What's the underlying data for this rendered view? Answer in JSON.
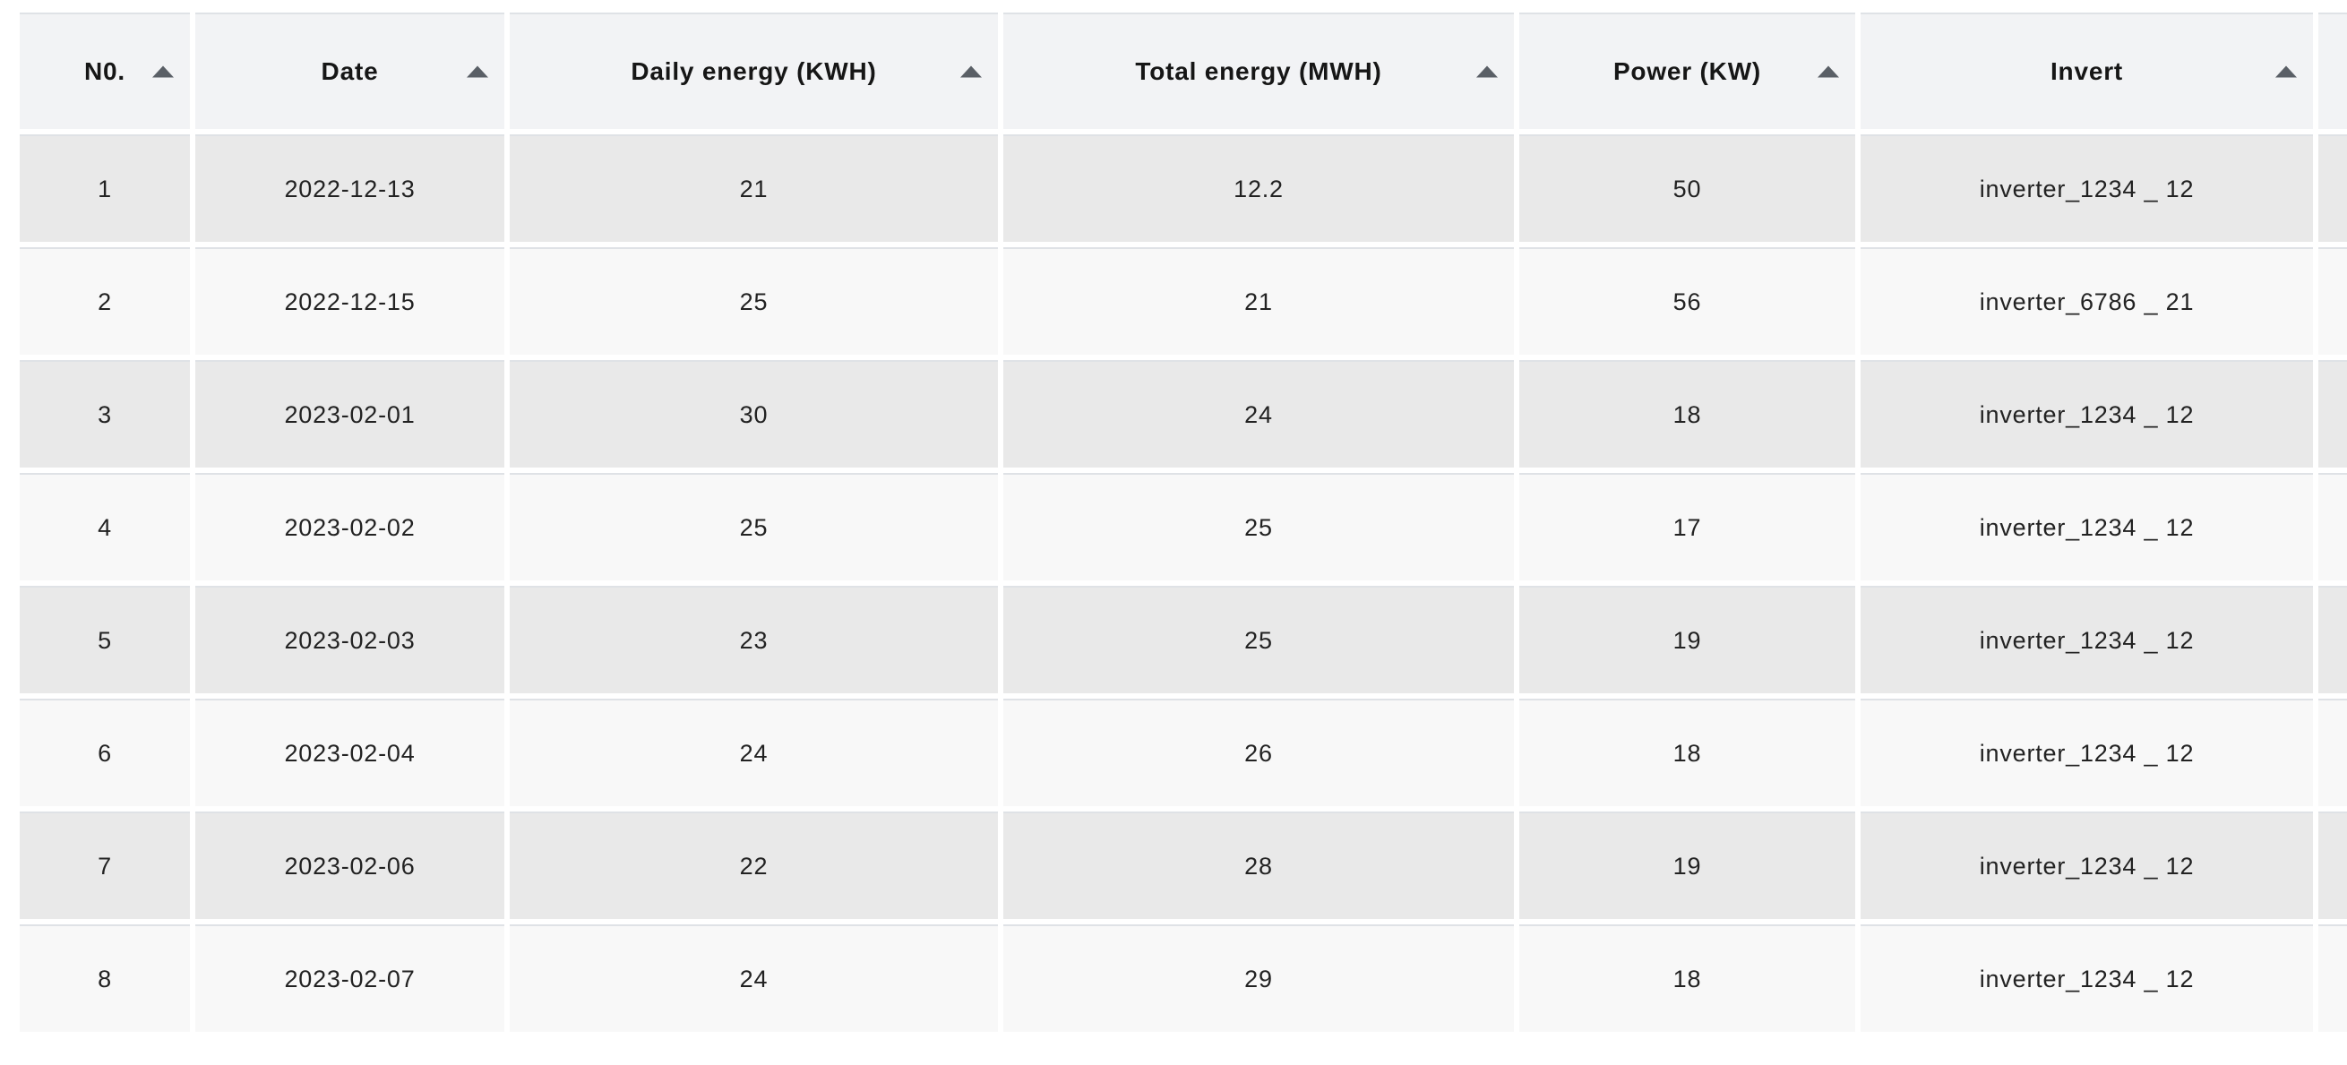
{
  "table": {
    "columns": [
      "N0.",
      "Date",
      "Daily energy (KWH)",
      "Total energy (MWH)",
      "Power (KW)",
      "Invert"
    ],
    "sort_icon": "caret-up-icon",
    "rows": [
      [
        "1",
        "2022-12-13",
        "21",
        "12.2",
        "50",
        "inverter_1234 _ 12"
      ],
      [
        "2",
        "2022-12-15",
        "25",
        "21",
        "56",
        "inverter_6786 _ 21"
      ],
      [
        "3",
        "2023-02-01",
        "30",
        "24",
        "18",
        "inverter_1234 _ 12"
      ],
      [
        "4",
        "2023-02-02",
        "25",
        "25",
        "17",
        "inverter_1234 _ 12"
      ],
      [
        "5",
        "2023-02-03",
        "23",
        "25",
        "19",
        "inverter_1234 _ 12"
      ],
      [
        "6",
        "2023-02-04",
        "24",
        "26",
        "18",
        "inverter_1234 _ 12"
      ],
      [
        "7",
        "2023-02-06",
        "22",
        "28",
        "19",
        "inverter_1234 _ 12"
      ],
      [
        "8",
        "2023-02-07",
        "24",
        "29",
        "18",
        "inverter_1234 _ 12"
      ]
    ],
    "colors": {
      "header_bg": "#f2f3f5",
      "row_odd_bg": "#e9e9e9",
      "row_even_bg": "#f8f8f8",
      "divider": "#dfe2e6",
      "text": "#222222",
      "caret": "#5a5f66"
    }
  }
}
